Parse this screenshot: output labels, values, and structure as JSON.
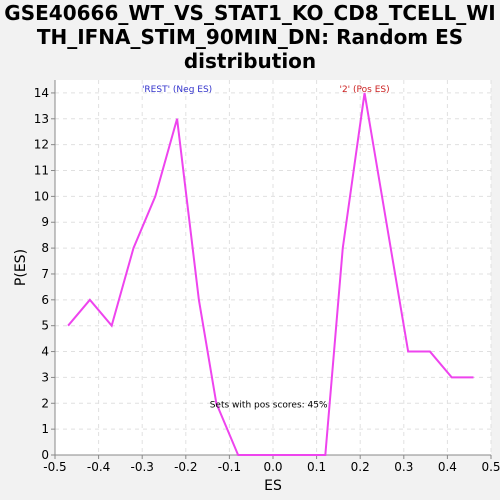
{
  "chart_data": {
    "type": "line",
    "title_lines": [
      "GSE40666_WT_VS_STAT1_KO_CD8_TCELL_WI",
      "TH_IFNA_STIM_90MIN_DN: Random ES",
      "distribution"
    ],
    "xlabel": "ES",
    "ylabel": "P(ES)",
    "xlim": [
      -0.5,
      0.5
    ],
    "ylim": [
      0,
      14.5
    ],
    "xticks": [
      "-0.5",
      "-0.4",
      "-0.3",
      "-0.2",
      "-0.1",
      "0.0",
      "0.1",
      "0.2",
      "0.3",
      "0.4",
      "0.5"
    ],
    "xtick_values": [
      -0.5,
      -0.4,
      -0.3,
      -0.2,
      -0.1,
      0.0,
      0.1,
      0.2,
      0.3,
      0.4,
      0.5
    ],
    "yticks": [
      "0",
      "1",
      "2",
      "3",
      "4",
      "5",
      "6",
      "7",
      "8",
      "9",
      "10",
      "11",
      "12",
      "13",
      "14"
    ],
    "ytick_values": [
      0,
      1,
      2,
      3,
      4,
      5,
      6,
      7,
      8,
      9,
      10,
      11,
      12,
      13,
      14
    ],
    "grid": true,
    "series": [
      {
        "color": "#ee44ee",
        "x": [
          -0.47,
          -0.42,
          -0.37,
          -0.32,
          -0.27,
          -0.22,
          -0.17,
          -0.13,
          -0.08,
          -0.03,
          0.02,
          0.07,
          0.12,
          0.16,
          0.21,
          0.26,
          0.31,
          0.36,
          0.41,
          0.46
        ],
        "y": [
          5,
          6,
          5,
          8,
          10,
          13,
          6,
          2,
          0,
          0,
          0,
          0,
          0,
          8,
          14,
          9,
          4,
          4,
          3,
          3
        ]
      }
    ],
    "annotations": {
      "neg_label": "'REST' (Neg ES)",
      "neg_color": "#3333cc",
      "pos_label": "'2' (Pos ES)",
      "pos_color": "#cc2222",
      "pos_scores_text": "Sets with pos scores: 45%"
    }
  }
}
